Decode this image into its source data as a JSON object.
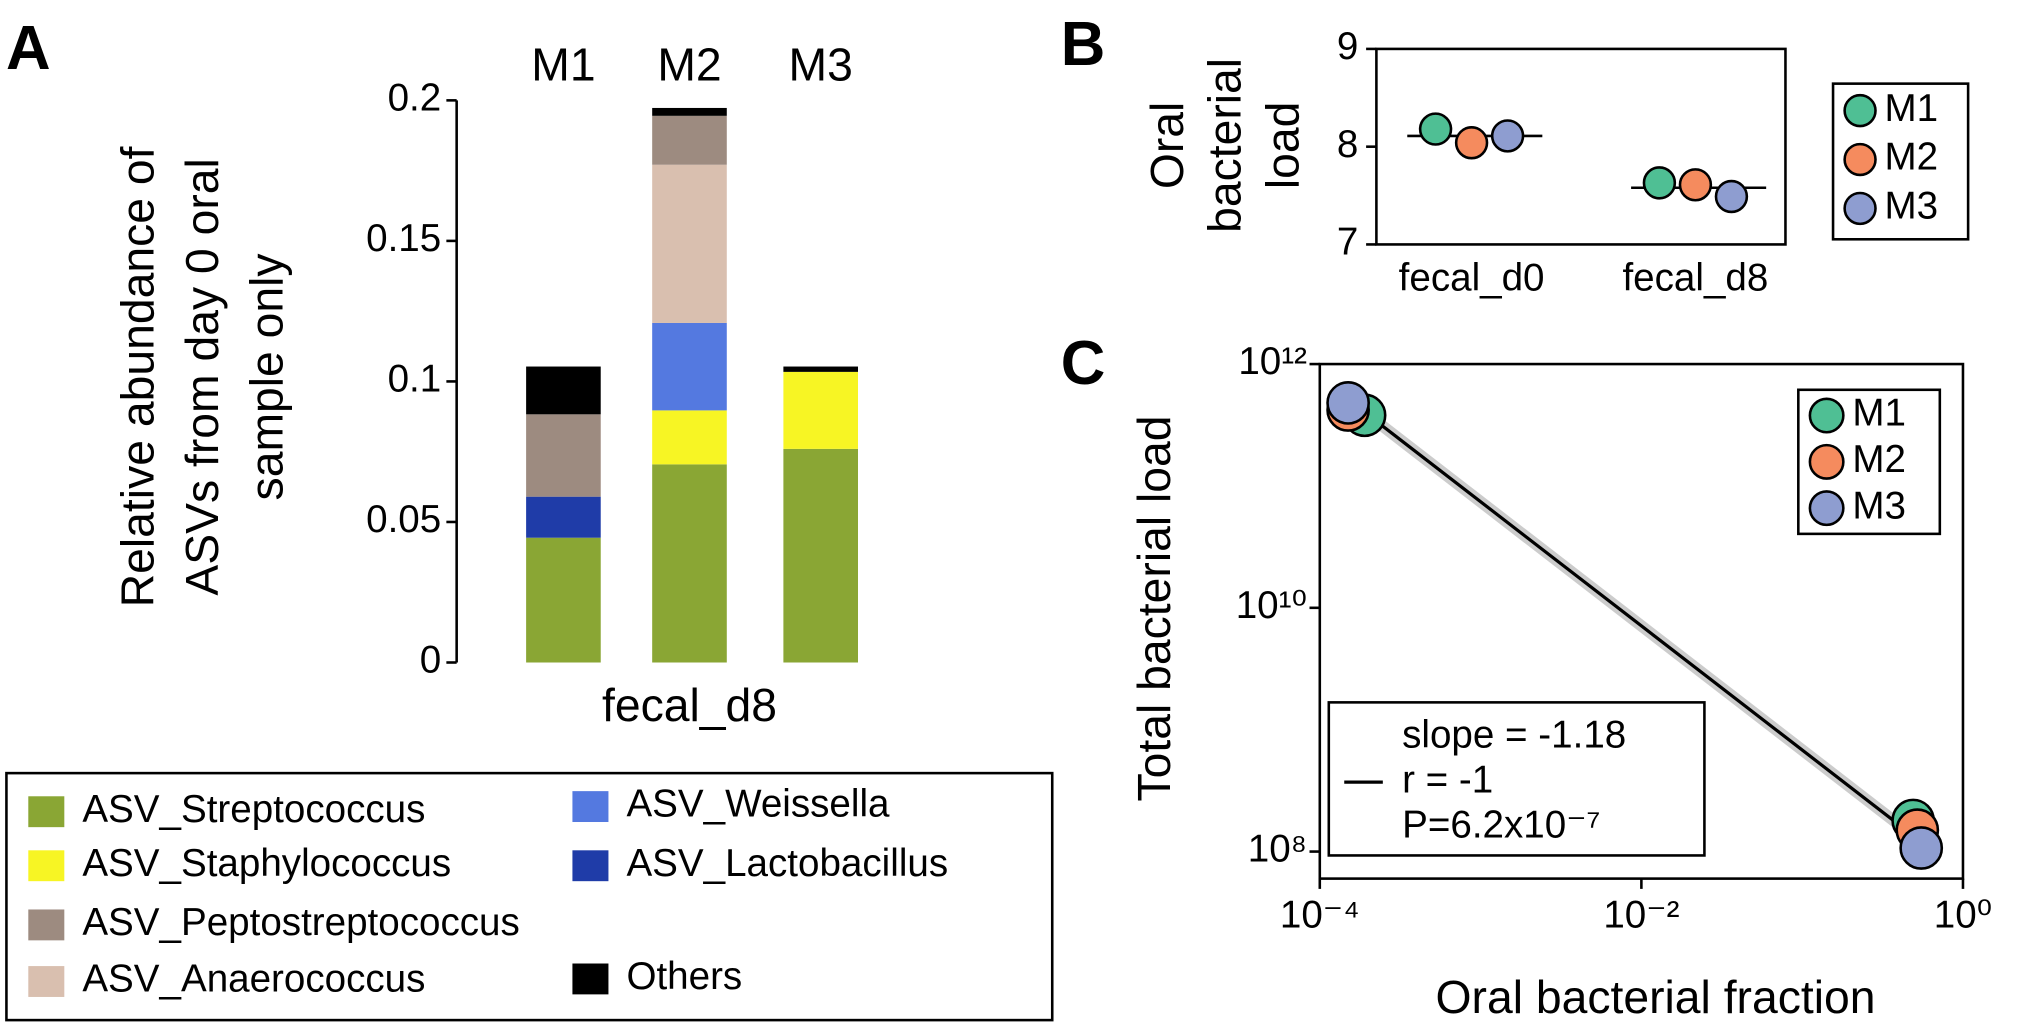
{
  "chart_data": [
    {
      "type": "bar",
      "panel": "A",
      "stacked": true,
      "categories": [
        "M1",
        "M2",
        "M3"
      ],
      "xlabel": "fecal_d8",
      "ylabel": [
        "Relative abundance of",
        "ASVs from day 0 oral",
        "sample only"
      ],
      "ylim": [
        0,
        0.2
      ],
      "yticks": [
        0,
        0.05,
        0.1,
        0.15,
        0.2
      ],
      "series": [
        {
          "name": "ASV_Streptococcus",
          "color": "#8aa634",
          "values": [
            0.0444,
            0.0705,
            0.076
          ]
        },
        {
          "name": "ASV_Staphylococcus",
          "color": "#f7f524",
          "values": [
            0,
            0.0192,
            0.0274
          ]
        },
        {
          "name": "ASV_Lactobacillus",
          "color": "#1f3ca8",
          "values": [
            0.0146,
            0,
            0
          ]
        },
        {
          "name": "ASV_Weissella",
          "color": "#5479e0",
          "values": [
            0,
            0.0311,
            0
          ]
        },
        {
          "name": "ASV_Anaerococcus",
          "color": "#d9bfaf",
          "values": [
            0,
            0.0563,
            0
          ]
        },
        {
          "name": "ASV_Peptostreptococcus",
          "color": "#9d8b80",
          "values": [
            0.0293,
            0.0174,
            0
          ]
        },
        {
          "name": "Others",
          "color": "#000000",
          "values": [
            0.017,
            0.0028,
            0.0019
          ]
        }
      ]
    },
    {
      "type": "dot",
      "panel": "B",
      "categories": [
        "fecal_d0",
        "fecal_d8"
      ],
      "ylabel": [
        "Oral",
        "bacterial",
        "load"
      ],
      "ylim": [
        7,
        9
      ],
      "yticks": [
        7,
        8,
        9
      ],
      "means": [
        8.11,
        7.58
      ],
      "series": [
        {
          "name": "M1",
          "color": "#4fbf94",
          "values": [
            8.18,
            7.63
          ]
        },
        {
          "name": "M2",
          "color": "#f58b5e",
          "values": [
            8.04,
            7.61
          ]
        },
        {
          "name": "M3",
          "color": "#8e9dd0",
          "values": [
            8.11,
            7.49
          ]
        }
      ]
    },
    {
      "type": "scatter",
      "panel": "C",
      "xscale": "log",
      "yscale": "log",
      "xlabel": "Oral bacterial fraction",
      "ylabel": "Total bacterial load",
      "xlim": [
        0.0001,
        1
      ],
      "ylim": [
        60000000,
        1000000000000
      ],
      "xticks": [
        {
          "value": 0.0001,
          "label": "10⁻⁴"
        },
        {
          "value": 0.01,
          "label": "10⁻²"
        },
        {
          "value": 1,
          "label": "10⁰"
        }
      ],
      "yticks": [
        {
          "value": 100000000,
          "label": "10⁸"
        },
        {
          "value": 10000000000,
          "label": "10¹⁰"
        },
        {
          "value": 1000000000000,
          "label": "10¹²"
        }
      ],
      "fit": {
        "x": [
          0.00014,
          0.55
        ],
        "y": [
          550000000000,
          120000000
        ]
      },
      "annotation": [
        "slope = -1.18",
        "r = -1",
        "P=6.2x10⁻⁷"
      ],
      "series": [
        {
          "name": "M1",
          "color": "#4fbf94",
          "x": [
            0.00019,
            0.49
          ],
          "values": [
            380000000000,
            180000000
          ]
        },
        {
          "name": "M2",
          "color": "#f58b5e",
          "x": [
            0.00015,
            0.52
          ],
          "values": [
            420000000000,
            150000000
          ]
        },
        {
          "name": "M3",
          "color": "#8e9dd0",
          "x": [
            0.00015,
            0.55
          ],
          "values": [
            480000000000,
            107000000
          ]
        }
      ]
    }
  ]
}
